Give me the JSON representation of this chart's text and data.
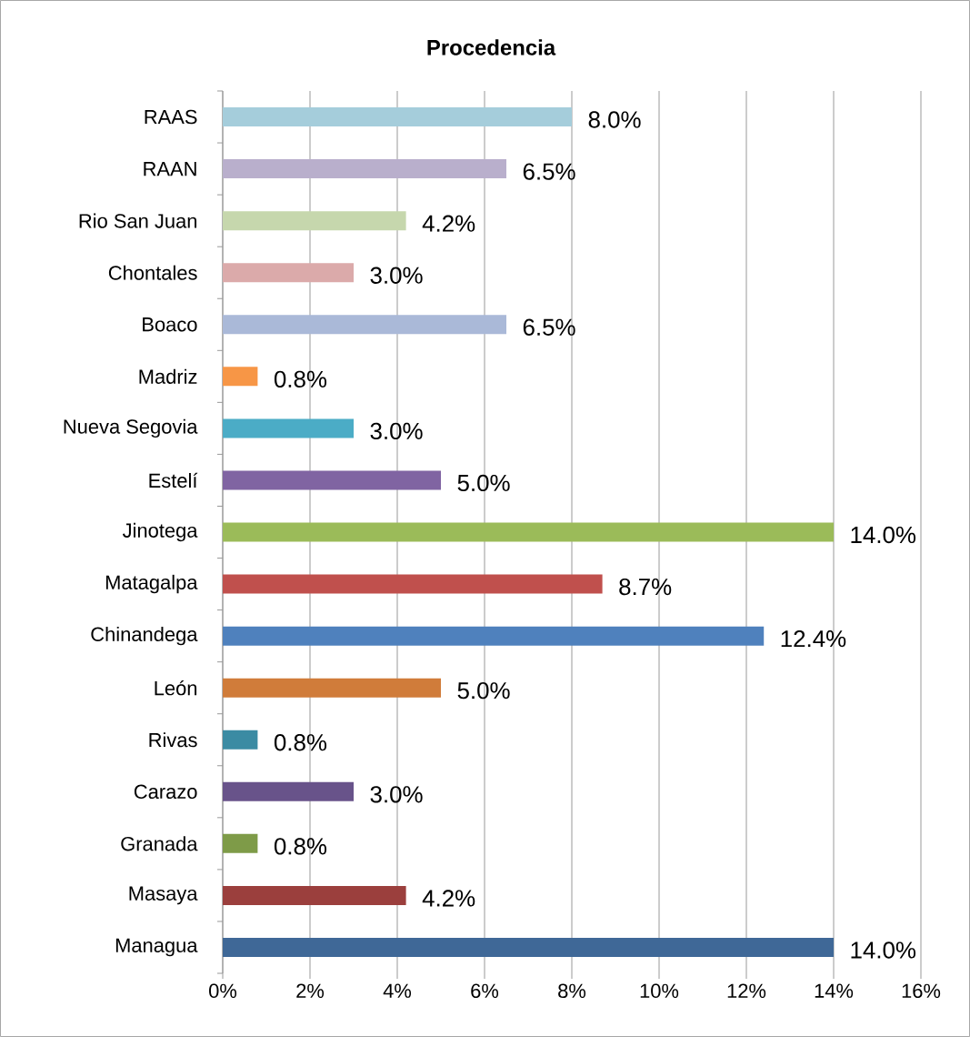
{
  "chart_data": {
    "type": "bar",
    "orientation": "horizontal",
    "title": "Procedencia",
    "categories": [
      "RAAS",
      "RAAN",
      "Rio San Juan",
      "Chontales",
      "Boaco",
      "Madriz",
      "Nueva Segovia",
      "Estelí",
      "Jinotega",
      "Matagalpa",
      "Chinandega",
      "León",
      "Rivas",
      "Carazo",
      "Granada",
      "Masaya",
      "Managua"
    ],
    "values": [
      8.0,
      6.5,
      4.2,
      3.0,
      6.5,
      0.8,
      3.0,
      5.0,
      14.0,
      8.7,
      12.4,
      5.0,
      0.8,
      3.0,
      0.8,
      4.2,
      14.0
    ],
    "value_labels": [
      "8.0%",
      "6.5%",
      "4.2%",
      "3.0%",
      "6.5%",
      "0.8%",
      "3.0%",
      "5.0%",
      "14.0%",
      "8.7%",
      "12.4%",
      "5.0%",
      "0.8%",
      "3.0%",
      "0.8%",
      "4.2%",
      "14.0%"
    ],
    "colors": [
      "#a5cddb",
      "#b9afcc",
      "#c6d7ad",
      "#dbaaaa",
      "#aab9d8",
      "#f79646",
      "#4bacc6",
      "#8064a2",
      "#9bbb59",
      "#c0504d",
      "#4f81bd",
      "#d07c3a",
      "#3b8ba3",
      "#68538a",
      "#7e9b48",
      "#9b3f3d",
      "#3f6897"
    ],
    "xlim": [
      0,
      16
    ],
    "xticks": [
      {
        "value": 0,
        "label": "0%"
      },
      {
        "value": 2,
        "label": "2%"
      },
      {
        "value": 4,
        "label": "4%"
      },
      {
        "value": 6,
        "label": "6%"
      },
      {
        "value": 8,
        "label": "8%"
      },
      {
        "value": 10,
        "label": "10%"
      },
      {
        "value": 12,
        "label": "12%"
      },
      {
        "value": 14,
        "label": "14%"
      },
      {
        "value": 16,
        "label": "16%"
      }
    ],
    "grid": "x"
  }
}
